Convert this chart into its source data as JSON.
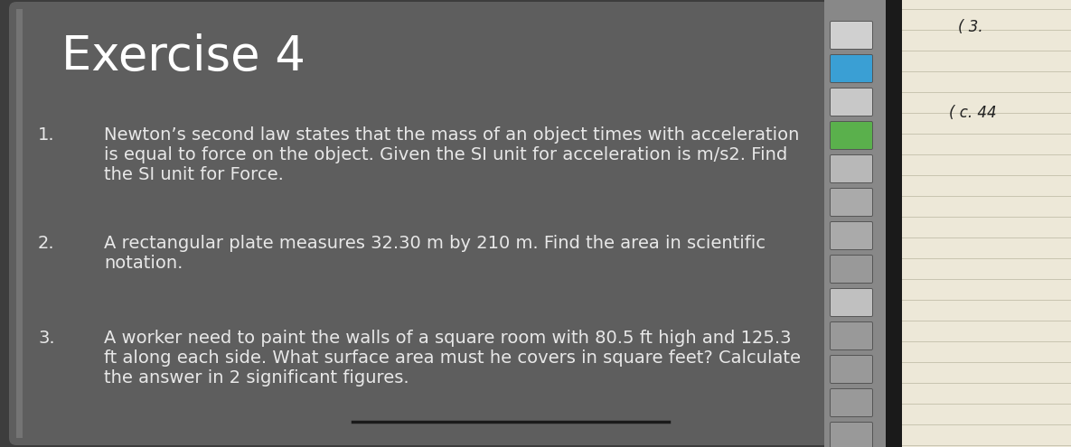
{
  "title": "Exercise 4",
  "title_fontsize": 38,
  "title_color": "#ffffff",
  "bg_outer": "#3a3a3a",
  "bg_main": "#636363",
  "items": [
    {
      "number": "1.",
      "lines": [
        "Newton’s second law states that the mass of an object times with acceleration",
        "is equal to force on the object. Given the SI unit for acceleration is m/s2. Find",
        "the SI unit for Force."
      ]
    },
    {
      "number": "2.",
      "lines": [
        "A rectangular plate measures 32.30 m by 210 m. Find the area in scientific",
        "notation."
      ]
    },
    {
      "number": "3.",
      "lines": [
        "A worker need to paint the walls of a square room with 80.5 ft high and 125.3",
        "ft along each side. What surface area must he covers in square feet? Calculate",
        "the answer in 2 significant figures."
      ]
    }
  ],
  "item_fontsize": 14,
  "item_color": "#e8e8e8",
  "number_color": "#e8e8e8",
  "thumb_colors": [
    "#d0d0d0",
    "#3a9fd4",
    "#c8c8c8",
    "#5ab04c",
    "#b8b8b8",
    "#aaaaaa",
    "#aaaaaa",
    "#999999",
    "#c0c0c0",
    "#999999",
    "#999999",
    "#999999",
    "#999999"
  ],
  "note_text_1": "( 3.",
  "note_text_2": "( c. 44",
  "notebook_color": "#ede8d8",
  "notebook_line_color": "#c8c4b0"
}
